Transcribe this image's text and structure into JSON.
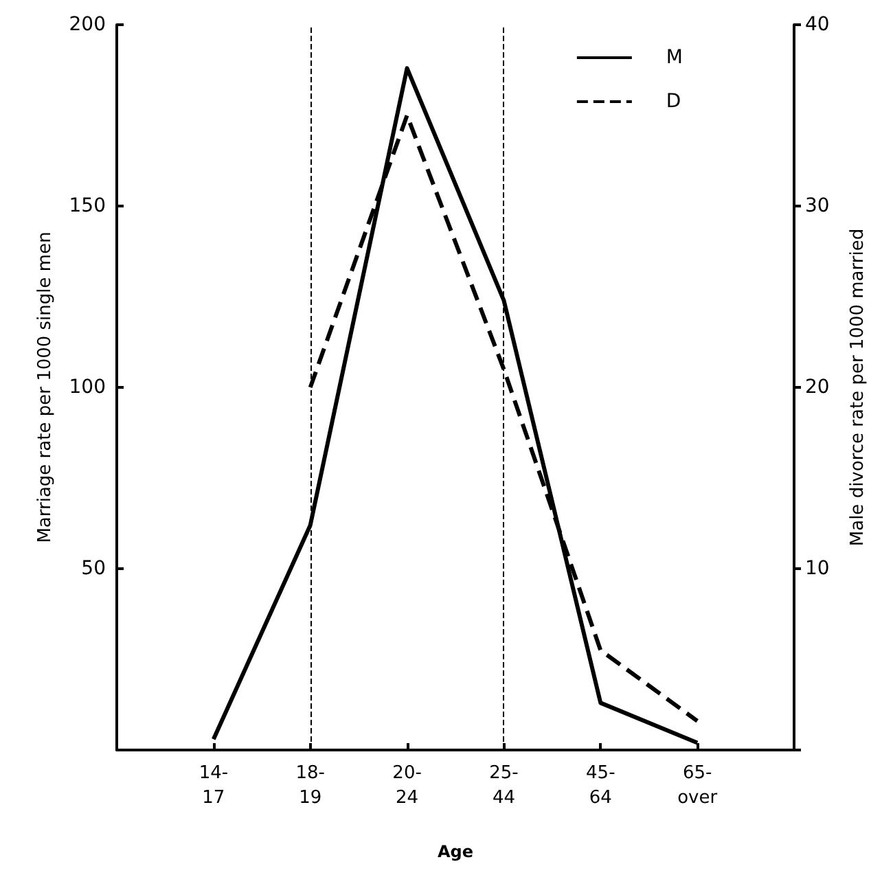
{
  "chart_data": {
    "type": "line",
    "xlabel": "Age",
    "ylabel": "Marriage rate per 1000 single men",
    "y2label": "Male divorce rate per 1000 married",
    "categories": [
      "14-\n17",
      "18-\n19",
      "20-\n24",
      "25-\n44",
      "45-\n64",
      "65-\nover"
    ],
    "series": [
      {
        "name": "M",
        "color": "#000000",
        "line_style": "solid",
        "values": [
          3,
          62,
          188,
          124,
          13,
          2
        ]
      },
      {
        "name": "D",
        "color": "#000000",
        "line_style": "dashed",
        "axis": "y2",
        "values": [
          null,
          20,
          35,
          21,
          5.5,
          1.6
        ]
      }
    ],
    "ylim": [
      0,
      200
    ],
    "yticks": [
      {
        "value": 0,
        "label": null
      },
      50,
      100,
      150,
      200
    ],
    "y2lim": [
      0,
      40
    ],
    "y2ticks": [
      {
        "value": 0,
        "label": null
      },
      10,
      20,
      30,
      40
    ],
    "ref_lines": [
      {
        "axis": "x",
        "value": "18-\n19",
        "line_style": "dashed",
        "color": "#000000"
      },
      {
        "axis": "x",
        "value": "25-\n44",
        "line_style": "dashed",
        "color": "#000000"
      }
    ],
    "legend": "top right",
    "marker": "none",
    "grid": false
  }
}
